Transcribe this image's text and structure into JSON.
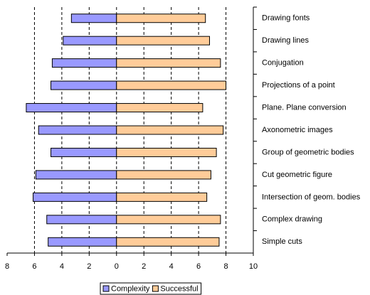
{
  "chart_data": {
    "type": "diverging-bar",
    "categories": [
      "Drawing fonts",
      "Drawing lines",
      "Conjugation",
      "Projections of a point",
      "Plane. Plane conversion",
      "Axonometric images",
      "Group of geometric bodies",
      "Cut geometric figure",
      "Intersection of geom. bodies",
      "Complex drawing",
      "Simple cuts"
    ],
    "series": [
      {
        "name": "Complexity",
        "color": "#9999ff",
        "values": [
          -3.3,
          -3.9,
          -4.7,
          -4.8,
          -6.6,
          -5.7,
          -4.8,
          -5.9,
          -6.1,
          -5.1,
          -5.0
        ]
      },
      {
        "name": "Successful",
        "color": "#ffcc99",
        "values": [
          6.5,
          6.8,
          7.6,
          8.0,
          6.3,
          7.8,
          7.3,
          6.9,
          6.6,
          7.6,
          7.5
        ]
      }
    ],
    "xlim": [
      -8,
      10
    ],
    "xticks": [
      {
        "value": -8,
        "label": "8"
      },
      {
        "value": -6,
        "label": "6"
      },
      {
        "value": -4,
        "label": "4"
      },
      {
        "value": -2,
        "label": "2"
      },
      0,
      2,
      4,
      6,
      8,
      10
    ],
    "grid": true
  }
}
